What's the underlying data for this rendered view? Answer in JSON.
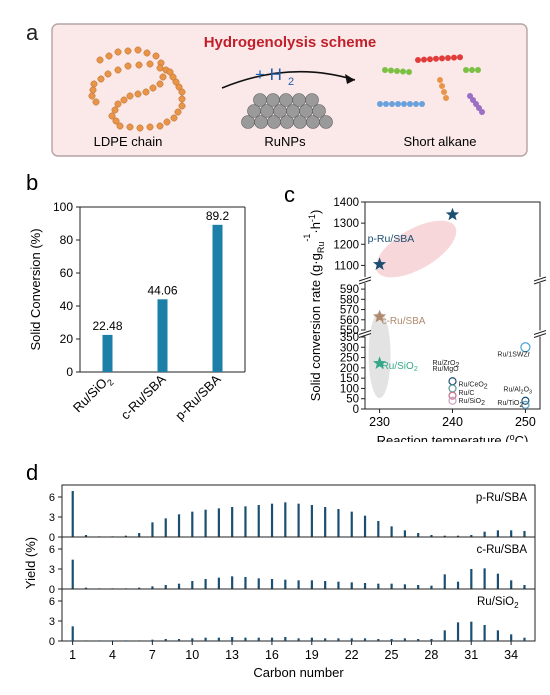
{
  "panel_a": {
    "letter": "a",
    "title": "Hydrogenolysis scheme",
    "reagent_prefix": "+ H",
    "reagent_sub": "2",
    "left_label": "LDPE chain",
    "catalyst_label": "RuNPs",
    "right_label": "Short alkane",
    "colors": {
      "box_fill": "#fbe9ea",
      "box_stroke": "#b6a3a4",
      "title": "#c0202a",
      "h2": "#1f5fa8",
      "ldpe_bead": "#e8954a",
      "np": "#8d8d8d"
    }
  },
  "panel_b": {
    "letter": "b"
  },
  "panel_c": {
    "letter": "c",
    "annotations": {
      "p_ru_sba": "p-Ru/SBA",
      "c_ru_sba": "c-Ru/SBA",
      "ru_sio2_main": "Ru/SiO",
      "ru_sio2_main_sub": "2",
      "ru_1swzr": "Ru/1SWZr",
      "ru_zro2": "Ru/ZrO",
      "ru_zro2_sub": "2",
      "ru_mgo": "Ru/MgO",
      "ru_ceo2": "Ru/CeO",
      "ru_ceo2_sub": "2",
      "ru_c": "Ru/C",
      "ru_sio2_small": "Ru/SiO",
      "ru_sio2_small_sub": "2",
      "ru_al2o3": "Ru/Al",
      "ru_al2o3_sub1": "2",
      "ru_al2o3_mid": "O",
      "ru_al2o3_sub2": "3",
      "ru_tio2": "Ru/TiO",
      "ru_tio2_sub": "2"
    },
    "ylabel_parts": [
      "Solid conversion rate (g·g",
      "Ru",
      "-1",
      "·h",
      "-1",
      ")"
    ],
    "xlabel_parts": [
      "Reaction temperature (",
      "o",
      "C)"
    ]
  },
  "panel_d": {
    "letter": "d"
  },
  "chart_data": [
    {
      "type": "bar",
      "panel": "b",
      "categories": [
        "Ru/SiO2",
        "c-Ru/SBA",
        "p-Ru/SBA"
      ],
      "category_labels": [
        [
          "Ru/SiO",
          "2"
        ],
        [
          "c-Ru/SBA",
          ""
        ],
        [
          "p-Ru/SBA",
          ""
        ]
      ],
      "values": [
        22.48,
        44.06,
        89.2
      ],
      "value_labels": [
        "22.48",
        "44.06",
        "89.2"
      ],
      "ylabel": "Solid Conversion (%)",
      "ylim": [
        0,
        100
      ],
      "yticks": [
        0,
        20,
        40,
        60,
        80,
        100
      ],
      "bar_color": "#1b7fa8",
      "grid": false
    },
    {
      "type": "scatter",
      "panel": "c",
      "xlim": [
        228,
        252
      ],
      "xticks": [
        230,
        240,
        250
      ],
      "y_broken_axis": true,
      "y_segments": [
        {
          "range": [
            0,
            350
          ],
          "ticks": [
            0,
            50,
            100,
            150,
            200,
            250,
            300,
            350
          ]
        },
        {
          "range": [
            550,
            595
          ],
          "ticks": [
            550,
            560,
            570,
            580,
            590
          ]
        },
        {
          "range": [
            1050,
            1400
          ],
          "ticks": [
            1100,
            1200,
            1300,
            1400
          ]
        }
      ],
      "series": [
        {
          "name": "p-Ru/SBA",
          "marker": "star",
          "color": "#1b4f72",
          "points": [
            [
              230,
              1105
            ],
            [
              240,
              1340
            ]
          ]
        },
        {
          "name": "c-Ru/SBA",
          "marker": "star",
          "color": "#b08a6e",
          "points": [
            [
              230,
              563
            ]
          ]
        },
        {
          "name": "Ru/SiO2",
          "marker": "star",
          "color": "#36a88a",
          "points": [
            [
              230,
              222
            ]
          ]
        },
        {
          "name": "Ru/1SWZr",
          "marker": "circle",
          "color": "#47a0d8",
          "points": [
            [
              250,
              300
            ]
          ]
        },
        {
          "name": "Ru/ZrO2",
          "marker": "circle",
          "color": "#1b4f72",
          "points": [
            [
              240,
              135
            ]
          ]
        },
        {
          "name": "Ru/CeO2",
          "marker": "circle",
          "color": "#5a9a9a",
          "points": [
            [
              240,
              100
            ]
          ]
        },
        {
          "name": "Ru/C",
          "marker": "circle",
          "color": "#c86a86",
          "points": [
            [
              240,
              65
            ]
          ]
        },
        {
          "name": "Ru/SiO2",
          "marker": "circle",
          "color": "#c8a0c0",
          "points": [
            [
              240,
              40
            ]
          ]
        },
        {
          "name": "Ru/Al2O3",
          "marker": "circle",
          "color": "#1b4f72",
          "points": [
            [
              250,
              40
            ]
          ]
        },
        {
          "name": "Ru/TiO2",
          "marker": "circle",
          "color": "#5aa0c8",
          "points": [
            [
              250,
              20
            ]
          ]
        }
      ],
      "highlights": [
        {
          "label": "p-Ru/SBA",
          "color": "#f6c9cf"
        },
        {
          "label": "c-Ru/SBA + Ru/SiO2",
          "color": "#d9d9d9"
        }
      ]
    },
    {
      "type": "bar",
      "panel": "d",
      "xlabel": "Carbon number",
      "ylabel": "Yield (%)",
      "xticks": [
        1,
        4,
        7,
        10,
        13,
        16,
        19,
        22,
        25,
        28,
        31,
        34
      ],
      "ylim": [
        0,
        7.5
      ],
      "yticks": [
        0,
        3,
        6
      ],
      "bar_color": "#1b4f72",
      "x": [
        1,
        2,
        3,
        4,
        5,
        6,
        7,
        8,
        9,
        10,
        11,
        12,
        13,
        14,
        15,
        16,
        17,
        18,
        19,
        20,
        21,
        22,
        23,
        24,
        25,
        26,
        27,
        28,
        29,
        30,
        31,
        32,
        33,
        34,
        35
      ],
      "series": [
        {
          "name": "p-Ru/SBA",
          "values": [
            6.9,
            0.3,
            0.1,
            0.1,
            0.2,
            0.6,
            2.2,
            2.8,
            3.4,
            3.8,
            4.1,
            4.3,
            4.5,
            4.6,
            4.8,
            5.0,
            5.2,
            5.0,
            4.8,
            4.5,
            4.2,
            3.8,
            3.2,
            2.4,
            1.6,
            1.0,
            0.6,
            0.3,
            0.2,
            0.2,
            0.3,
            0.8,
            1.0,
            1.0,
            0.9
          ]
        },
        {
          "name": "c-Ru/SBA",
          "values": [
            4.4,
            0.2,
            0.1,
            0.1,
            0.1,
            0.2,
            0.4,
            0.6,
            0.8,
            1.2,
            1.5,
            1.7,
            1.9,
            1.8,
            1.6,
            1.5,
            1.4,
            1.3,
            1.3,
            1.2,
            1.1,
            1.0,
            0.9,
            0.8,
            0.8,
            0.7,
            0.6,
            0.5,
            2.2,
            1.1,
            3.0,
            3.1,
            2.3,
            1.3,
            0.6
          ]
        },
        {
          "name": "Ru/SiO2",
          "values": [
            2.2,
            0.1,
            0.1,
            0.1,
            0.1,
            0.1,
            0.2,
            0.3,
            0.3,
            0.4,
            0.5,
            0.5,
            0.6,
            0.5,
            0.5,
            0.5,
            0.6,
            0.4,
            0.5,
            0.4,
            0.4,
            0.4,
            0.4,
            0.3,
            0.3,
            0.4,
            0.3,
            0.3,
            1.6,
            2.8,
            2.9,
            2.4,
            1.6,
            1.0,
            0.5
          ]
        }
      ],
      "series_labels": [
        [
          "p-Ru/SBA",
          ""
        ],
        [
          "c-Ru/SBA",
          ""
        ],
        [
          "Ru/SiO",
          "2"
        ]
      ]
    }
  ]
}
